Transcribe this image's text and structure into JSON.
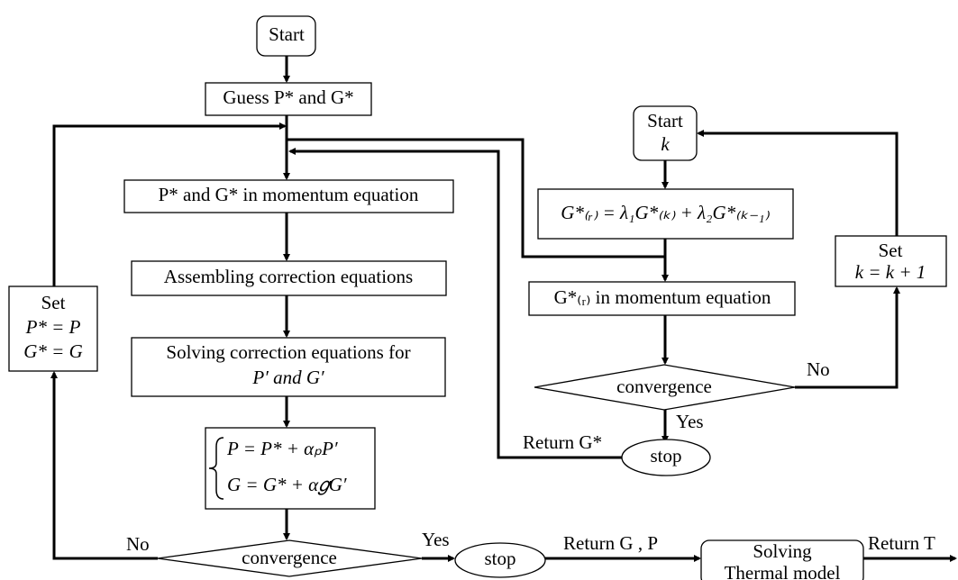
{
  "nodes": [
    {
      "id": "start",
      "label": "Start"
    },
    {
      "id": "guess",
      "label": "Guess P* and G*"
    },
    {
      "id": "momentum",
      "label": "P* and  G* in momentum equation"
    },
    {
      "id": "assemble",
      "label": "Assembling correction equations"
    },
    {
      "id": "solve",
      "lines": [
        "Solving correction equations for",
        "P′ and G′"
      ]
    },
    {
      "id": "update",
      "lines": [
        "P = P* + αₚP′",
        "G = G* + α𝑔G′"
      ]
    },
    {
      "id": "convergence",
      "label": "convergence"
    },
    {
      "id": "stop",
      "label": "stop"
    },
    {
      "id": "thermal",
      "lines": [
        "Solving",
        "Thermal model"
      ]
    },
    {
      "id": "set",
      "lines": [
        "Set",
        "P* = P",
        "G* = G"
      ]
    },
    {
      "id": "start-k",
      "lines": [
        "Start",
        "k"
      ]
    },
    {
      "id": "relax",
      "label": "G*₍ᵣ₎ = λ₁G*₍ₖ₎ + λ₂G*₍ₖ₋₁₎"
    },
    {
      "id": "momentum-r",
      "label": "G*₍ᵣ₎  in momentum equation"
    },
    {
      "id": "convergence-k",
      "label": "convergence"
    },
    {
      "id": "stop-k",
      "label": "stop"
    },
    {
      "id": "set-k",
      "lines": [
        "Set",
        "k = k + 1"
      ]
    }
  ],
  "edge_labels": {
    "no_main": "No",
    "yes_main": "Yes",
    "return_gp": "Return G , P",
    "return_t": "Return T",
    "no_k": "No",
    "yes_k": "Yes",
    "return_g": "Return G*"
  }
}
